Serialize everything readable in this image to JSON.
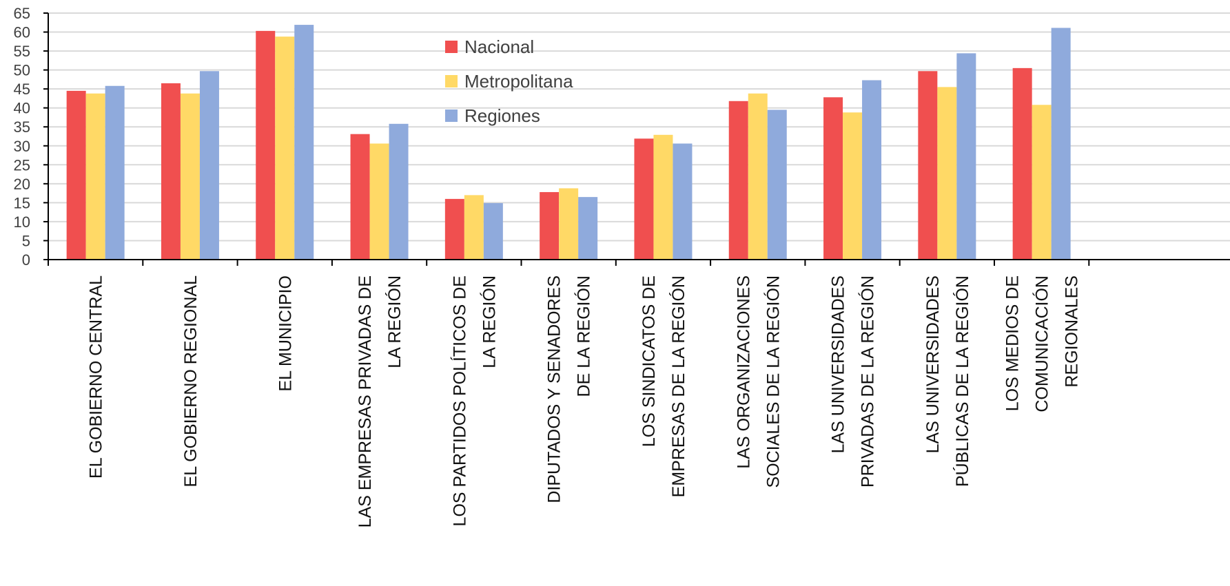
{
  "chart_data": {
    "type": "bar",
    "title": "",
    "xlabel": "",
    "ylabel": "",
    "ylim": [
      0,
      65
    ],
    "yticks": [
      0,
      5,
      10,
      15,
      20,
      25,
      30,
      35,
      40,
      45,
      50,
      55,
      60,
      65
    ],
    "grid": true,
    "legend_position": "top-center",
    "categories": [
      [
        "EL GOBIERNO CENTRAL"
      ],
      [
        "EL GOBIERNO REGIONAL"
      ],
      [
        "EL MUNICIPIO"
      ],
      [
        "LAS EMPRESAS PRIVADAS DE",
        "LA REGIÓN"
      ],
      [
        "LOS PARTIDOS POLÍTICOS DE",
        "LA REGIÓN"
      ],
      [
        "DIPUTADOS Y SENADORES",
        "DE LA REGIÓN"
      ],
      [
        "LOS SINDICATOS DE",
        "EMPRESAS DE LA REGIÓN"
      ],
      [
        "LAS ORGANIZACIONES",
        "SOCIALES DE LA REGIÓN"
      ],
      [
        "LAS UNIVERSIDADES",
        "PRIVADAS  DE LA REGIÓN"
      ],
      [
        "LAS UNIVERSIDADES",
        "PÚBLICAS DE LA REGIÓN"
      ],
      [
        "LOS MEDIOS DE",
        "COMUNICACIÓN",
        "REGIONALES"
      ]
    ],
    "series": [
      {
        "name": "Nacional",
        "color": "#f04f4f",
        "values": [
          44.5,
          46.5,
          60.3,
          33.1,
          16.0,
          17.8,
          31.9,
          41.8,
          42.8,
          49.7,
          50.5
        ]
      },
      {
        "name": "Metropolitana",
        "color": "#ffd966",
        "values": [
          43.8,
          43.8,
          58.8,
          30.6,
          17.0,
          18.8,
          32.9,
          43.8,
          38.8,
          45.5,
          40.8
        ]
      },
      {
        "name": "Regiones",
        "color": "#8faadc",
        "values": [
          45.8,
          49.7,
          61.9,
          35.8,
          14.9,
          16.5,
          30.6,
          39.5,
          47.3,
          54.4,
          61.1
        ]
      }
    ]
  }
}
